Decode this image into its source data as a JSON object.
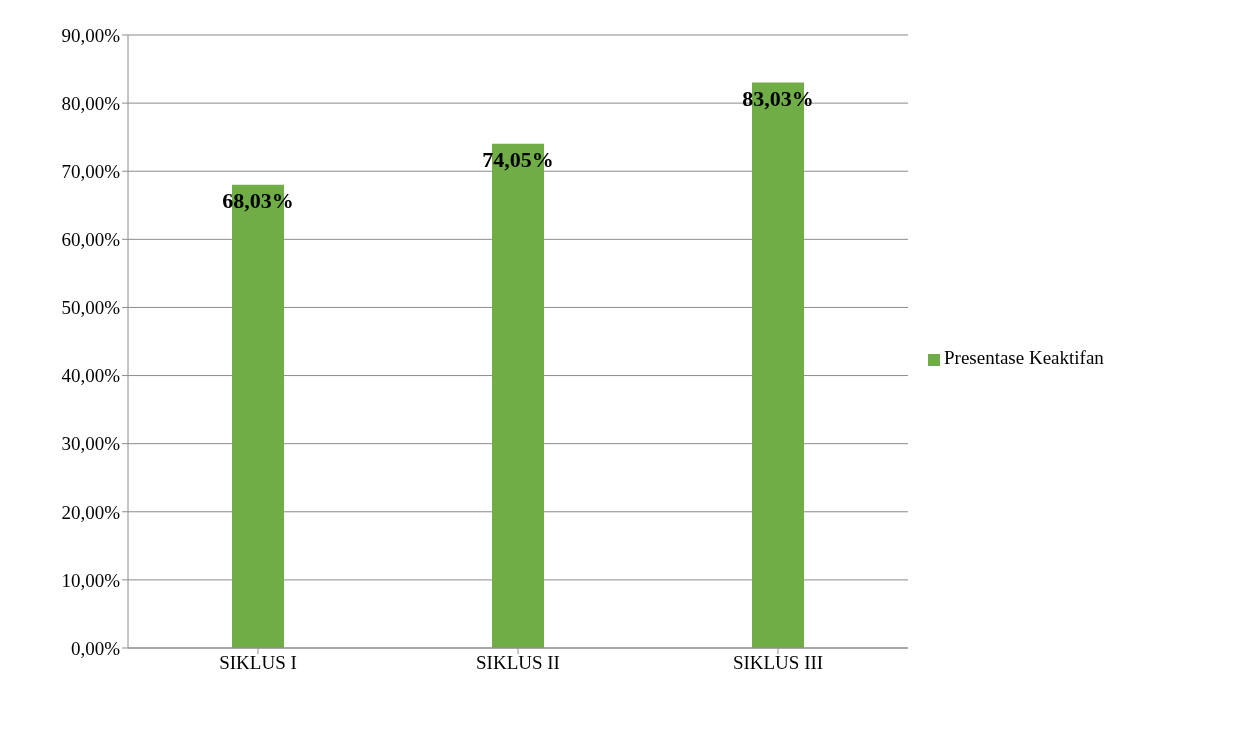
{
  "chart_data": {
    "type": "bar",
    "categories": [
      "SIKLUS I",
      "SIKLUS II",
      "SIKLUS III"
    ],
    "series": [
      {
        "name": "Presentase Keaktifan",
        "color": "#70ad47",
        "values": [
          68.03,
          74.05,
          83.03
        ],
        "value_labels": [
          "68,03%",
          "74,05%",
          "83,03%"
        ]
      }
    ],
    "ylim": [
      0,
      90
    ],
    "yticks": [
      {
        "value": 0,
        "label": "0,00%"
      },
      {
        "value": 10,
        "label": "10,00%"
      },
      {
        "value": 20,
        "label": "20,00%"
      },
      {
        "value": 30,
        "label": "30,00%"
      },
      {
        "value": 40,
        "label": "40,00%"
      },
      {
        "value": 50,
        "label": "50,00%"
      },
      {
        "value": 60,
        "label": "60,00%"
      },
      {
        "value": 70,
        "label": "70,00%"
      },
      {
        "value": 80,
        "label": "80,00%"
      },
      {
        "value": 90,
        "label": "90,00%"
      }
    ],
    "grid": "y",
    "legend": "right"
  }
}
